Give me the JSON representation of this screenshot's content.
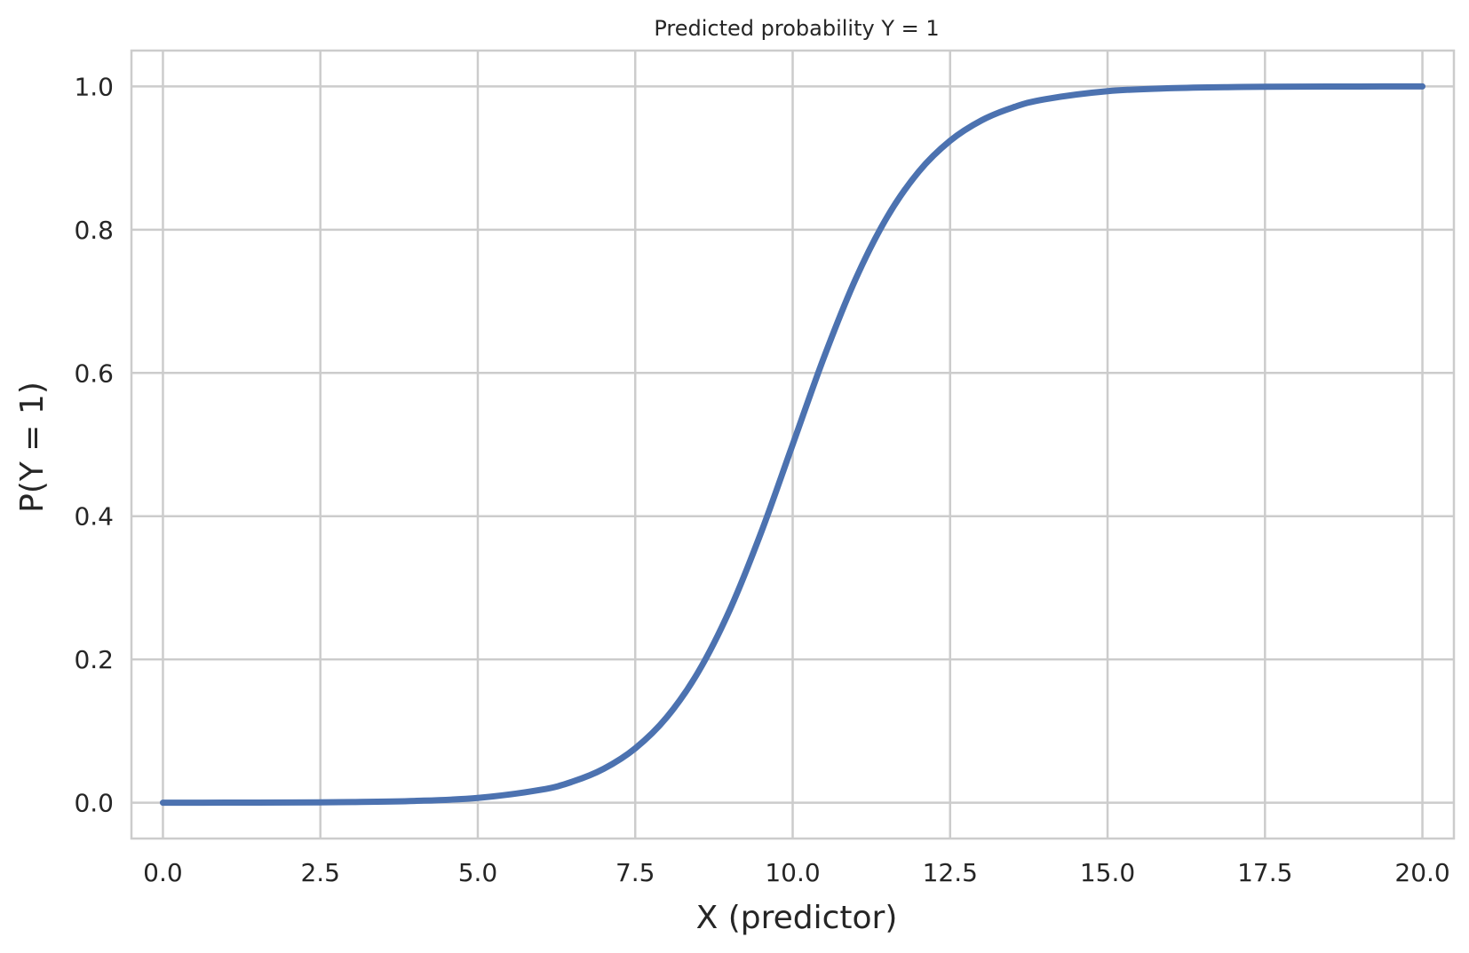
{
  "chart_data": {
    "type": "line",
    "title": "Predicted probability Y = 1",
    "xlabel": "X (predictor)",
    "ylabel": "P(Y = 1)",
    "xlim": [
      -0.5,
      20.5
    ],
    "ylim": [
      -0.05,
      1.05
    ],
    "grid": true,
    "x_ticks": [
      0.0,
      2.5,
      5.0,
      7.5,
      10.0,
      12.5,
      15.0,
      17.5,
      20.0
    ],
    "y_ticks": [
      0.0,
      0.2,
      0.4,
      0.6,
      0.8,
      1.0
    ],
    "x_tick_labels": [
      "0.0",
      "2.5",
      "5.0",
      "7.5",
      "10.0",
      "12.5",
      "15.0",
      "17.5",
      "20.0"
    ],
    "y_tick_labels": [
      "0.0",
      "0.2",
      "0.4",
      "0.6",
      "0.8",
      "1.0"
    ],
    "series": [
      {
        "color": "#4c72b0",
        "x": [
          0,
          1,
          2,
          3,
          4,
          5,
          6,
          6.5,
          7,
          7.5,
          8,
          8.5,
          9,
          9.5,
          10,
          10.5,
          11,
          11.5,
          12,
          12.5,
          13,
          13.5,
          14,
          15,
          16,
          17,
          18,
          19,
          20
        ],
        "y": [
          0.0,
          0.0001,
          0.0003,
          0.0009,
          0.0025,
          0.0067,
          0.018,
          0.0293,
          0.0474,
          0.0759,
          0.1192,
          0.1824,
          0.2689,
          0.3775,
          0.5,
          0.6225,
          0.7311,
          0.8176,
          0.8808,
          0.9241,
          0.9526,
          0.9707,
          0.982,
          0.9933,
          0.9975,
          0.9991,
          0.9997,
          0.9999,
          1.0
        ]
      }
    ]
  },
  "colors": {
    "background": "#ffffff",
    "grid": "#cccccc",
    "line": "#4c72b0",
    "text": "#262626"
  }
}
